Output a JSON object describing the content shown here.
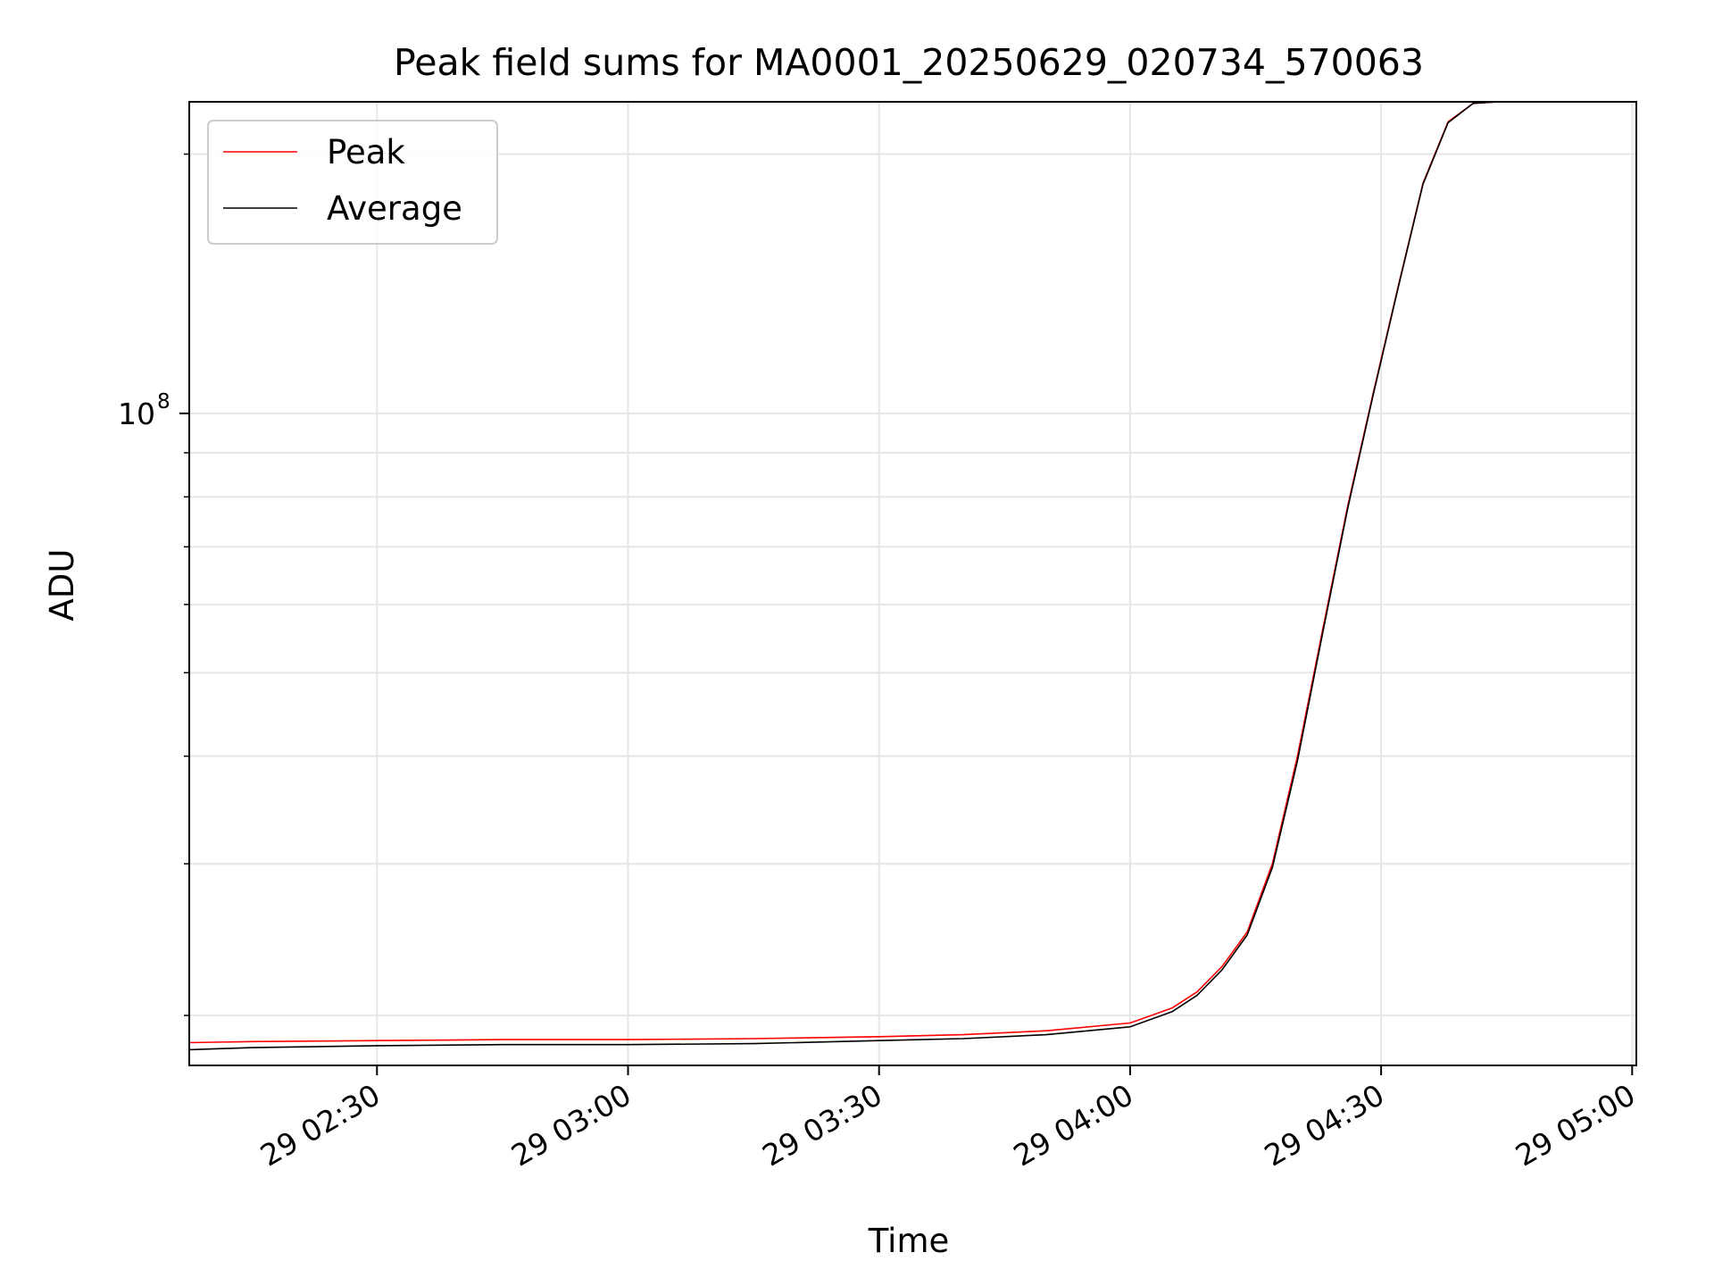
{
  "chart_data": {
    "type": "line",
    "title": "Peak field sums for MA0001_20250629_020734_570063",
    "xlabel": "Time",
    "ylabel": "ADU",
    "x_ticks": [
      {
        "t": "2025-06-29T02:30:00",
        "label": "29 02:30"
      },
      {
        "t": "2025-06-29T03:00:00",
        "label": "29 03:00"
      },
      {
        "t": "2025-06-29T03:30:00",
        "label": "29 03:30"
      },
      {
        "t": "2025-06-29T04:00:00",
        "label": "29 04:00"
      },
      {
        "t": "2025-06-29T04:30:00",
        "label": "29 04:30"
      },
      {
        "t": "2025-06-29T05:00:00",
        "label": "29 05:00"
      }
    ],
    "xlim": [
      "2025-06-29T02:07:34",
      "2025-06-29T05:00:30"
    ],
    "y_scale": "log",
    "y_major_ticks": [
      {
        "value": 100000000,
        "base": "10",
        "exp": "8"
      }
    ],
    "y_minor_ticks": [
      20000000,
      30000000,
      40000000,
      50000000,
      60000000,
      70000000,
      80000000,
      90000000,
      200000000
    ],
    "ylim": [
      17500000,
      230000000
    ],
    "grid": true,
    "legend": {
      "position": "top-left",
      "entries": [
        "Peak",
        "Average"
      ]
    },
    "series": [
      {
        "name": "Peak",
        "color": "#ff0000",
        "points": [
          [
            "2025-06-29T02:07:34",
            18600000
          ],
          [
            "2025-06-29T02:15:00",
            18650000
          ],
          [
            "2025-06-29T02:30:00",
            18700000
          ],
          [
            "2025-06-29T02:45:00",
            18750000
          ],
          [
            "2025-06-29T03:00:00",
            18750000
          ],
          [
            "2025-06-29T03:15:00",
            18800000
          ],
          [
            "2025-06-29T03:30:00",
            18900000
          ],
          [
            "2025-06-29T03:40:00",
            19000000
          ],
          [
            "2025-06-29T03:50:00",
            19200000
          ],
          [
            "2025-06-29T04:00:00",
            19600000
          ],
          [
            "2025-06-29T04:05:00",
            20400000
          ],
          [
            "2025-06-29T04:08:00",
            21300000
          ],
          [
            "2025-06-29T04:11:00",
            22800000
          ],
          [
            "2025-06-29T04:14:00",
            25000000
          ],
          [
            "2025-06-29T04:17:00",
            30000000
          ],
          [
            "2025-06-29T04:20:00",
            40000000
          ],
          [
            "2025-06-29T04:23:00",
            56000000
          ],
          [
            "2025-06-29T04:26:00",
            78000000
          ],
          [
            "2025-06-29T04:29:00",
            105000000
          ],
          [
            "2025-06-29T04:32:00",
            140000000
          ],
          [
            "2025-06-29T04:35:00",
            185000000
          ],
          [
            "2025-06-29T04:38:00",
            218000000
          ],
          [
            "2025-06-29T04:41:00",
            229000000
          ],
          [
            "2025-06-29T04:44:00",
            230000000
          ],
          [
            "2025-06-29T04:46:00",
            230000000
          ]
        ]
      },
      {
        "name": "Average",
        "color": "#000000",
        "points": [
          [
            "2025-06-29T02:07:34",
            18250000
          ],
          [
            "2025-06-29T02:15:00",
            18350000
          ],
          [
            "2025-06-29T02:30:00",
            18450000
          ],
          [
            "2025-06-29T02:45:00",
            18500000
          ],
          [
            "2025-06-29T03:00:00",
            18500000
          ],
          [
            "2025-06-29T03:15:00",
            18550000
          ],
          [
            "2025-06-29T03:30:00",
            18700000
          ],
          [
            "2025-06-29T03:40:00",
            18800000
          ],
          [
            "2025-06-29T03:50:00",
            19000000
          ],
          [
            "2025-06-29T04:00:00",
            19400000
          ],
          [
            "2025-06-29T04:05:00",
            20200000
          ],
          [
            "2025-06-29T04:08:00",
            21100000
          ],
          [
            "2025-06-29T04:11:00",
            22600000
          ],
          [
            "2025-06-29T04:14:00",
            24800000
          ],
          [
            "2025-06-29T04:17:00",
            29700000
          ],
          [
            "2025-06-29T04:20:00",
            39500000
          ],
          [
            "2025-06-29T04:23:00",
            55500000
          ],
          [
            "2025-06-29T04:26:00",
            77500000
          ],
          [
            "2025-06-29T04:29:00",
            104500000
          ],
          [
            "2025-06-29T04:32:00",
            139500000
          ],
          [
            "2025-06-29T04:35:00",
            184500000
          ],
          [
            "2025-06-29T04:38:00",
            217500000
          ],
          [
            "2025-06-29T04:41:00",
            229000000
          ],
          [
            "2025-06-29T04:44:00",
            230000000
          ],
          [
            "2025-06-29T04:46:00",
            230000000
          ]
        ]
      }
    ]
  }
}
